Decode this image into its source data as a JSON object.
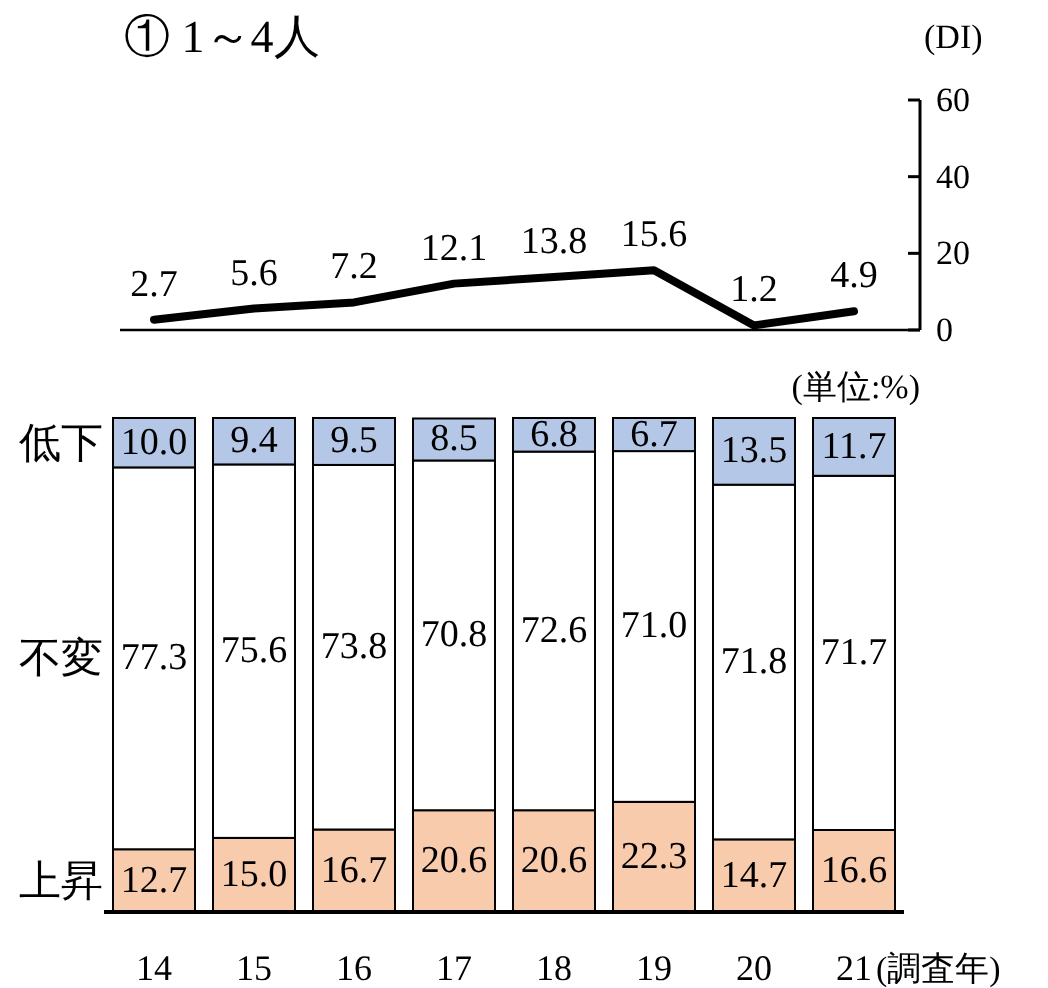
{
  "chart_data": [
    {
      "type": "line",
      "title": "① 1～4人",
      "ylabel": "(DI)",
      "categories": [
        null,
        null,
        null,
        null,
        null,
        null,
        null,
        null
      ],
      "values": [
        2.7,
        5.6,
        7.2,
        12.1,
        13.8,
        15.6,
        1.2,
        4.9
      ],
      "color": "#000000",
      "ylim": [
        0,
        60
      ],
      "yticks": [
        0,
        20,
        40,
        60
      ],
      "data_labels": true
    },
    {
      "type": "bar",
      "stacked": true,
      "xlabel": "(調査年)",
      "annotations": [
        "(単位:%)"
      ],
      "categories": [
        "14",
        "15",
        "16",
        "17",
        "18",
        "19",
        "20",
        "21"
      ],
      "series": [
        {
          "name": "上昇",
          "color": "#f8cbad",
          "values": [
            12.7,
            15.0,
            16.7,
            20.6,
            20.6,
            22.3,
            14.7,
            16.6
          ],
          "value_labels": [
            "12.7",
            "15.0",
            "16.7",
            "20.6",
            "20.6",
            "22.3",
            "14.7",
            "16.6"
          ]
        },
        {
          "name": "不変",
          "color": "#ffffff",
          "values": [
            77.3,
            75.6,
            73.8,
            70.8,
            72.6,
            71.0,
            71.8,
            71.7
          ],
          "value_labels": [
            "77.3",
            "75.6",
            "73.8",
            "70.8",
            "72.6",
            "71.0",
            "71.8",
            "71.7"
          ]
        },
        {
          "name": "低下",
          "color": "#b4c7e7",
          "values": [
            10.0,
            9.4,
            9.5,
            8.5,
            6.8,
            6.7,
            13.5,
            11.7
          ],
          "value_labels": [
            "10.0",
            "9.4",
            "9.5",
            "8.5",
            "6.8",
            "6.7",
            "13.5",
            "11.7"
          ]
        }
      ]
    }
  ]
}
